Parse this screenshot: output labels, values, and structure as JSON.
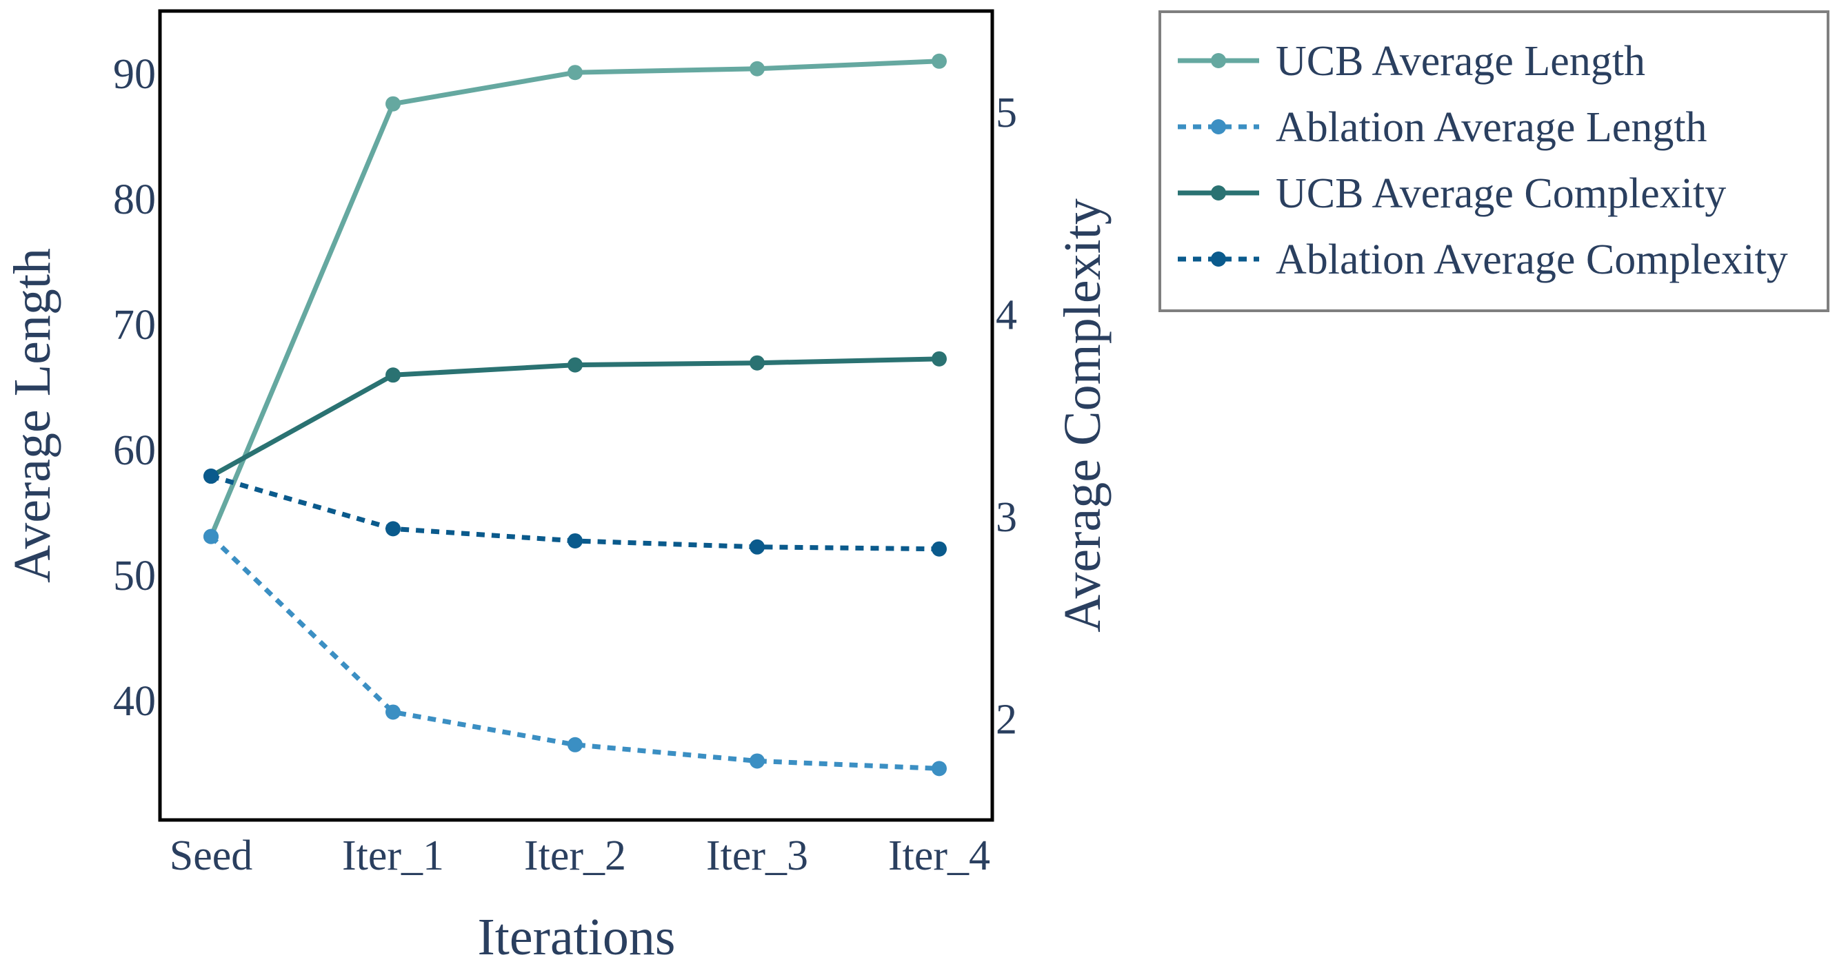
{
  "chart_data": {
    "type": "line",
    "x": [
      "Seed",
      "Iter_1",
      "Iter_2",
      "Iter_3",
      "Iter_4"
    ],
    "xlabel": "Iterations",
    "ylabel": "Average Length",
    "y2label": "Average Complexity",
    "ylim": [
      30.5,
      95
    ],
    "y2lim": [
      1.5,
      5.5
    ],
    "yticks": [
      40,
      50,
      60,
      70,
      80,
      90
    ],
    "y2ticks": [
      2,
      3,
      4,
      5
    ],
    "grid": false,
    "legend_position": "top-right outside",
    "series": [
      {
        "name": "UCB Average Length",
        "axis": "left",
        "style": "solid",
        "color": "#65a8a0",
        "values": [
          53.1,
          87.6,
          90.1,
          90.4,
          91.0
        ]
      },
      {
        "name": "Ablation Average Length",
        "axis": "left",
        "style": "dotted",
        "color": "#3b8fc3",
        "values": [
          53.1,
          39.1,
          36.5,
          35.2,
          34.6
        ]
      },
      {
        "name": "UCB Average Complexity",
        "axis": "right",
        "style": "solid",
        "color": "#2a7272",
        "values": [
          3.2,
          3.7,
          3.75,
          3.76,
          3.78
        ]
      },
      {
        "name": "Ablation Average Complexity",
        "axis": "right",
        "style": "dotted",
        "color": "#0a5a8c",
        "values": [
          3.2,
          2.94,
          2.88,
          2.85,
          2.84
        ]
      }
    ]
  }
}
